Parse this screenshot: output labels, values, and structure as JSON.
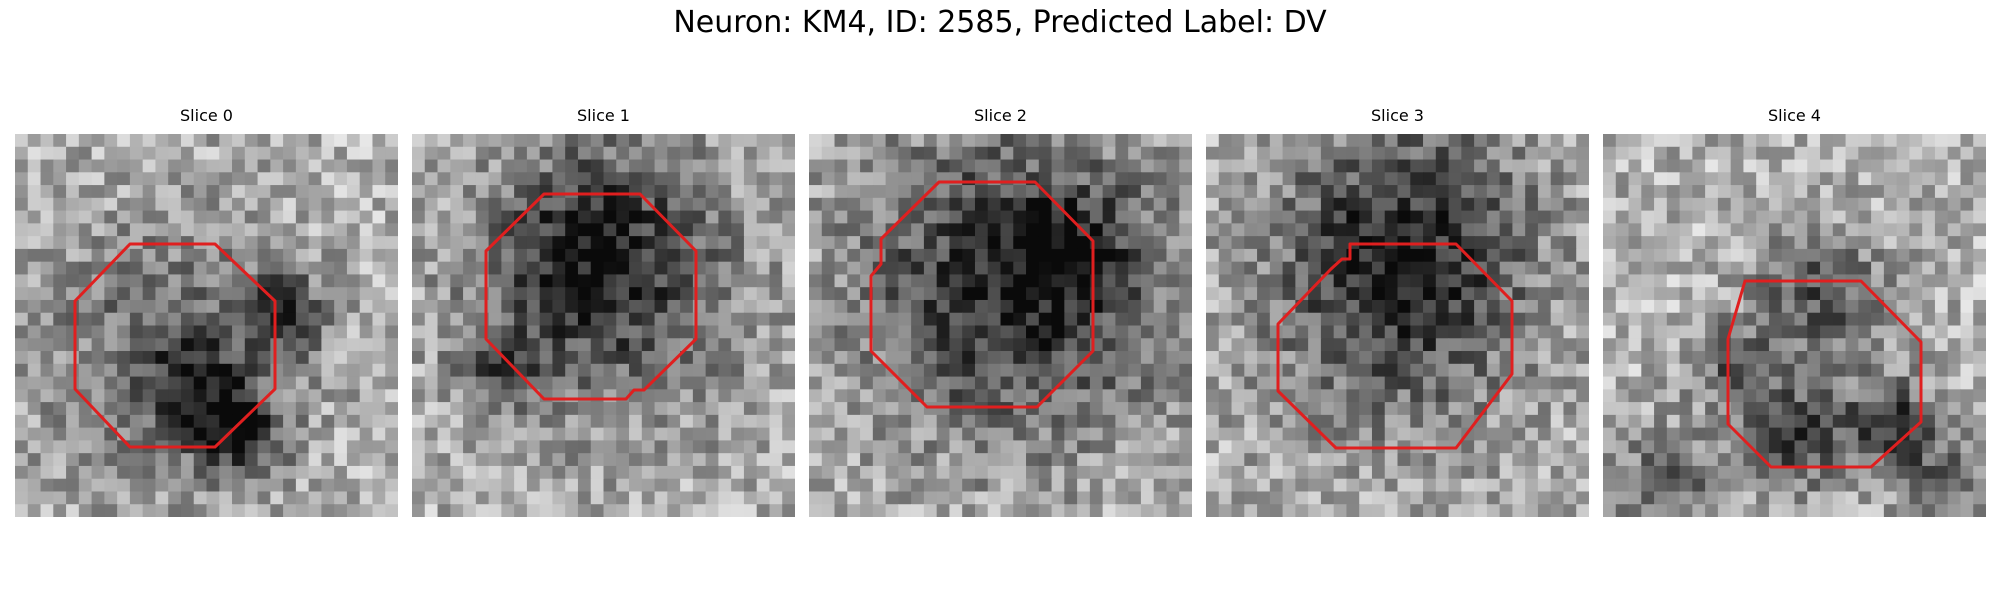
{
  "figure": {
    "title": "Neuron: KM4, ID: 2585, Predicted Label: DV"
  },
  "colors": {
    "contour": "#e01f1f",
    "background": "#ffffff"
  },
  "panels": [
    {
      "title": "Slice 0"
    },
    {
      "title": "Slice 1"
    },
    {
      "title": "Slice 2"
    },
    {
      "title": "Slice 3"
    },
    {
      "title": "Slice 4"
    }
  ]
}
